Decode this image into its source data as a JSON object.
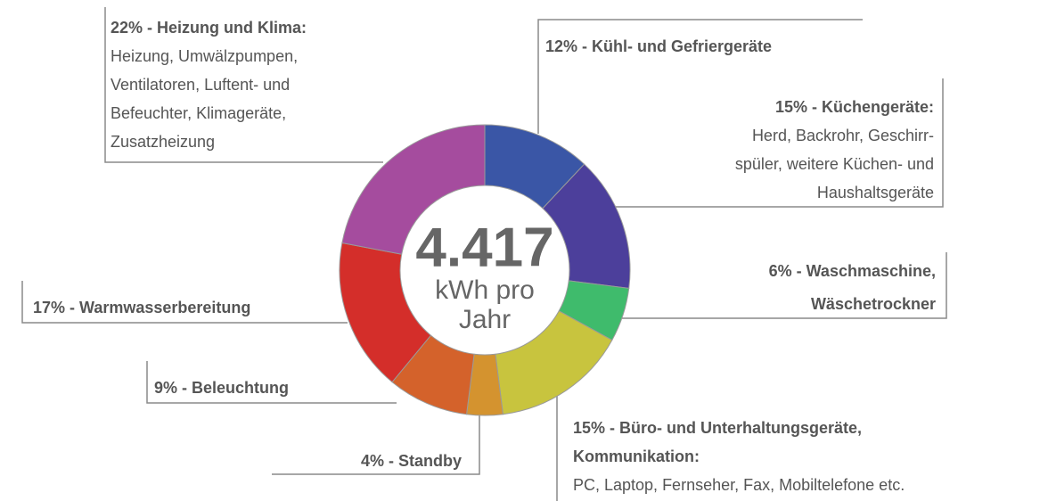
{
  "chart_data": {
    "type": "pie",
    "donut": true,
    "center_lines": [
      "4.417",
      "kWh pro",
      "Jahr"
    ],
    "categories": [
      "12% - Kühl- und Gefriergeräte",
      "15% - Küchengeräte:",
      "6% - Waschmaschine, Wäschetrockner",
      "15% - Büro- und Unterhaltungsgeräte, Kommunikation:",
      "4% - Standby",
      "9% - Beleuchtung",
      "17% - Warmwasserbereitung",
      "22% - Heizung und Klima:"
    ],
    "descriptions": [
      [],
      [
        "Herd, Backrohr, Geschirr-",
        "spüler, weitere Küchen- und",
        "Haushaltsgeräte"
      ],
      [],
      [
        "PC, Laptop, Fernseher, Fax, Mobiltelefone etc."
      ],
      [],
      [],
      [],
      [
        "Heizung, Umwälzpumpen,",
        "Ventilatoren, Luftent- und",
        "Befeuchter, Klimageräte,",
        "Zusatzheizung"
      ]
    ],
    "values": [
      12,
      15,
      6,
      15,
      4,
      9,
      17,
      22
    ],
    "colors": [
      "#3a56a6",
      "#4c3f9b",
      "#3fbb6c",
      "#c8c43e",
      "#d4932f",
      "#d4622b",
      "#d42e2a",
      "#a54c9e"
    ]
  }
}
